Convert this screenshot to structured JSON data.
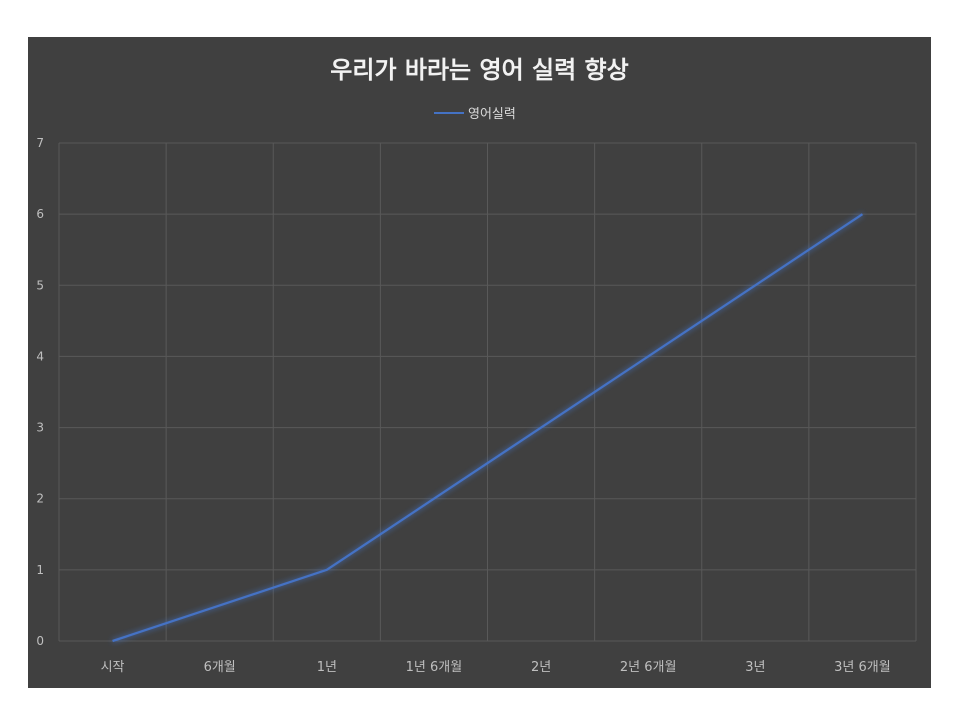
{
  "chart_data": {
    "type": "line",
    "title": "우리가 바라는 영어 실력 향상",
    "categories": [
      "시작",
      "6개월",
      "1년",
      "1년 6개월",
      "2년",
      "2년 6개월",
      "3년",
      "3년 6개월"
    ],
    "series": [
      {
        "name": "영어실력",
        "values": [
          0,
          0.5,
          1,
          2,
          3,
          4,
          5,
          6
        ]
      }
    ],
    "ylim": [
      0,
      7
    ],
    "yticks": [
      "0",
      "1",
      "2",
      "3",
      "4",
      "5",
      "6",
      "7"
    ],
    "xlabel": "",
    "ylabel": "",
    "grid": true,
    "legend_position": "top",
    "colors": {
      "background": "#404040",
      "line": "#4472c4",
      "grid": "#595959",
      "text": "#bfbfbf",
      "title": "#f2f2f2"
    }
  }
}
